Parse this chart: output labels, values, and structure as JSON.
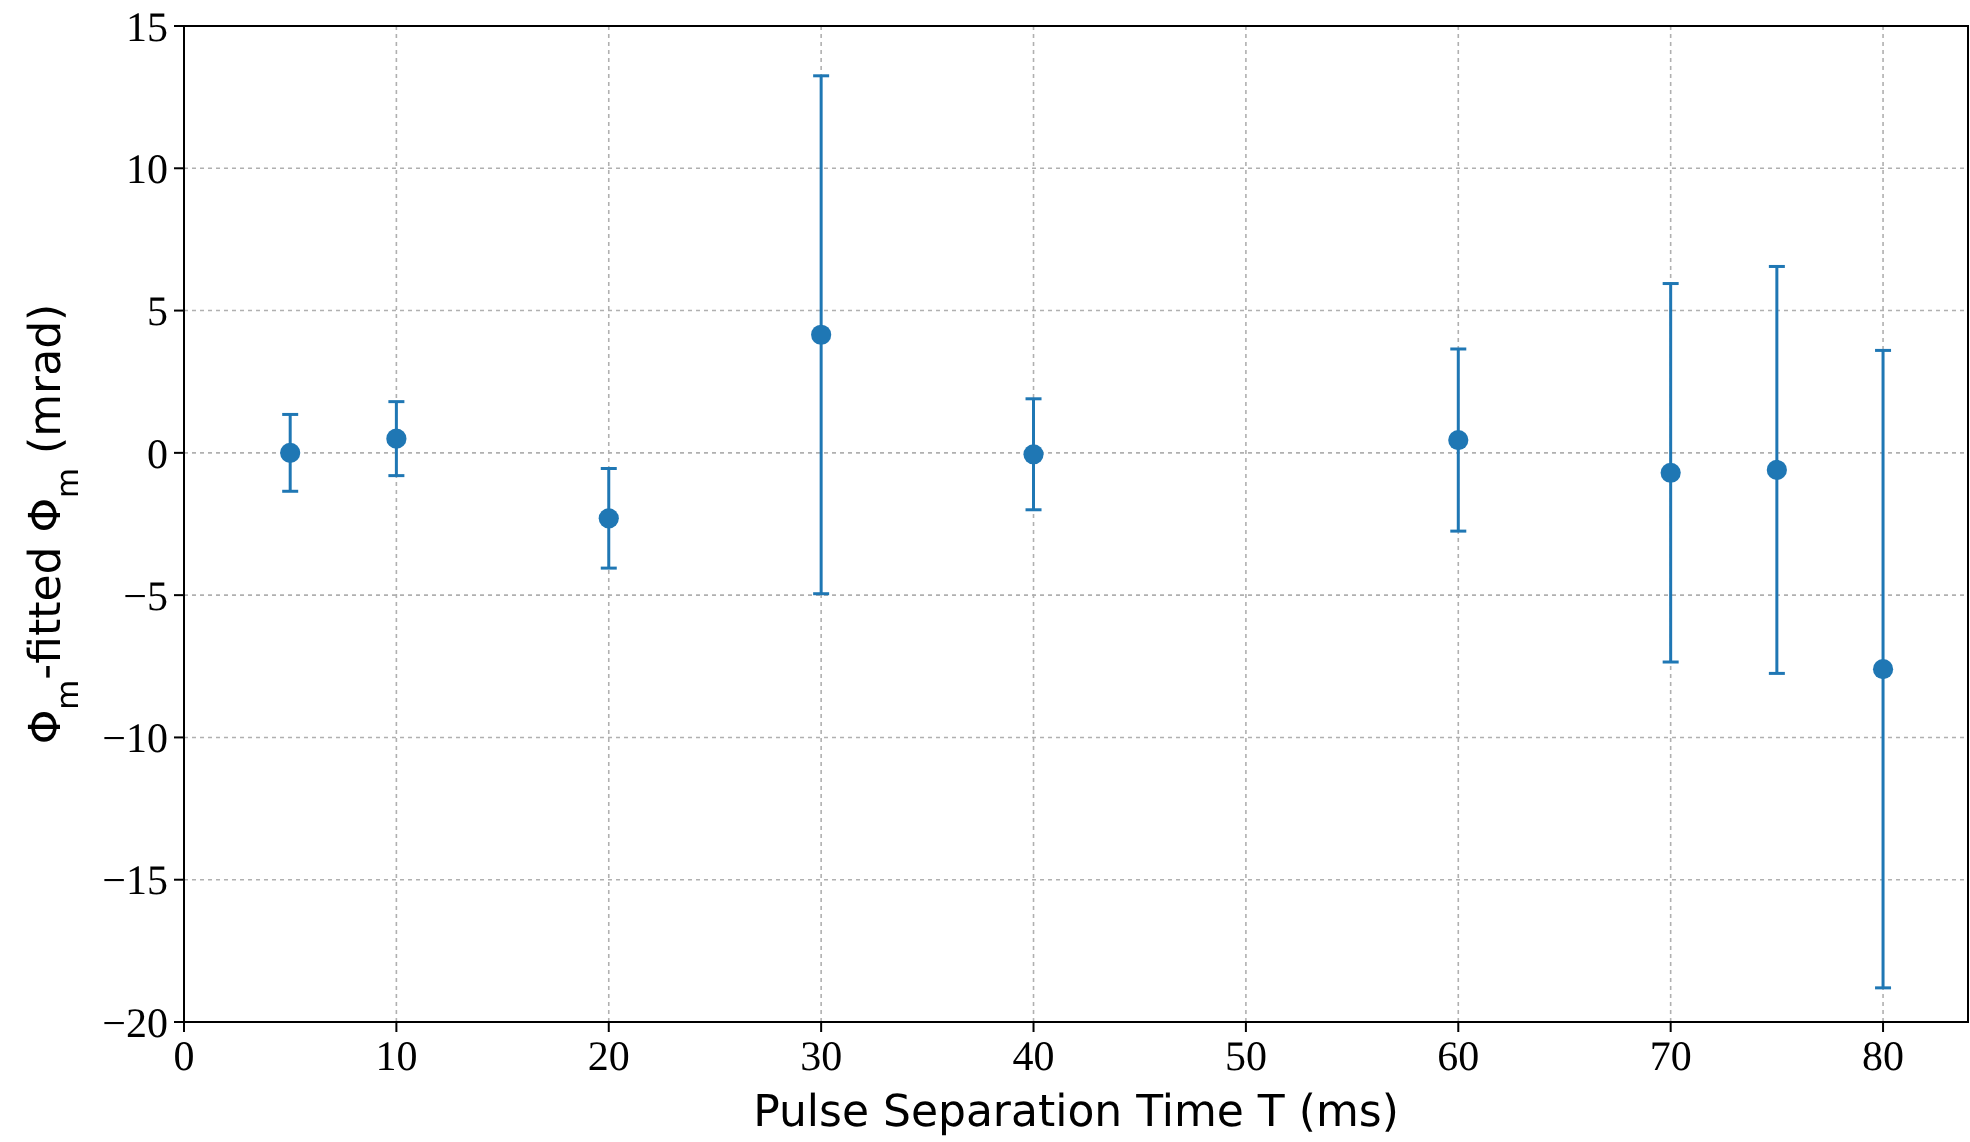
{
  "chart_data": {
    "type": "scatter",
    "xlabel": "Pulse Separation Time T (ms)",
    "ylabel": "Φ$_{m}$-fitted Φ$_{m}$ (mrad)",
    "x": [
      5,
      10,
      20,
      30,
      40,
      60,
      70,
      75,
      80
    ],
    "series": [
      {
        "color": "#1f77b4",
        "values": [
          0,
          0.5,
          -2.3,
          4.15,
          -0.05,
          0.45,
          -0.7,
          -0.6,
          -7.6
        ],
        "errors": [
          1.35,
          1.3,
          1.75,
          9.1,
          1.95,
          3.2,
          6.65,
          7.15,
          11.2
        ]
      }
    ],
    "xlim": [
      0,
      84
    ],
    "xticks": [
      0,
      10,
      20,
      30,
      40,
      50,
      60,
      70,
      80
    ],
    "ylim": [
      -20,
      15
    ],
    "yticks": [
      -20,
      -15,
      -10,
      -5,
      0,
      5,
      10,
      15
    ],
    "grid": true,
    "marker": "circle"
  }
}
